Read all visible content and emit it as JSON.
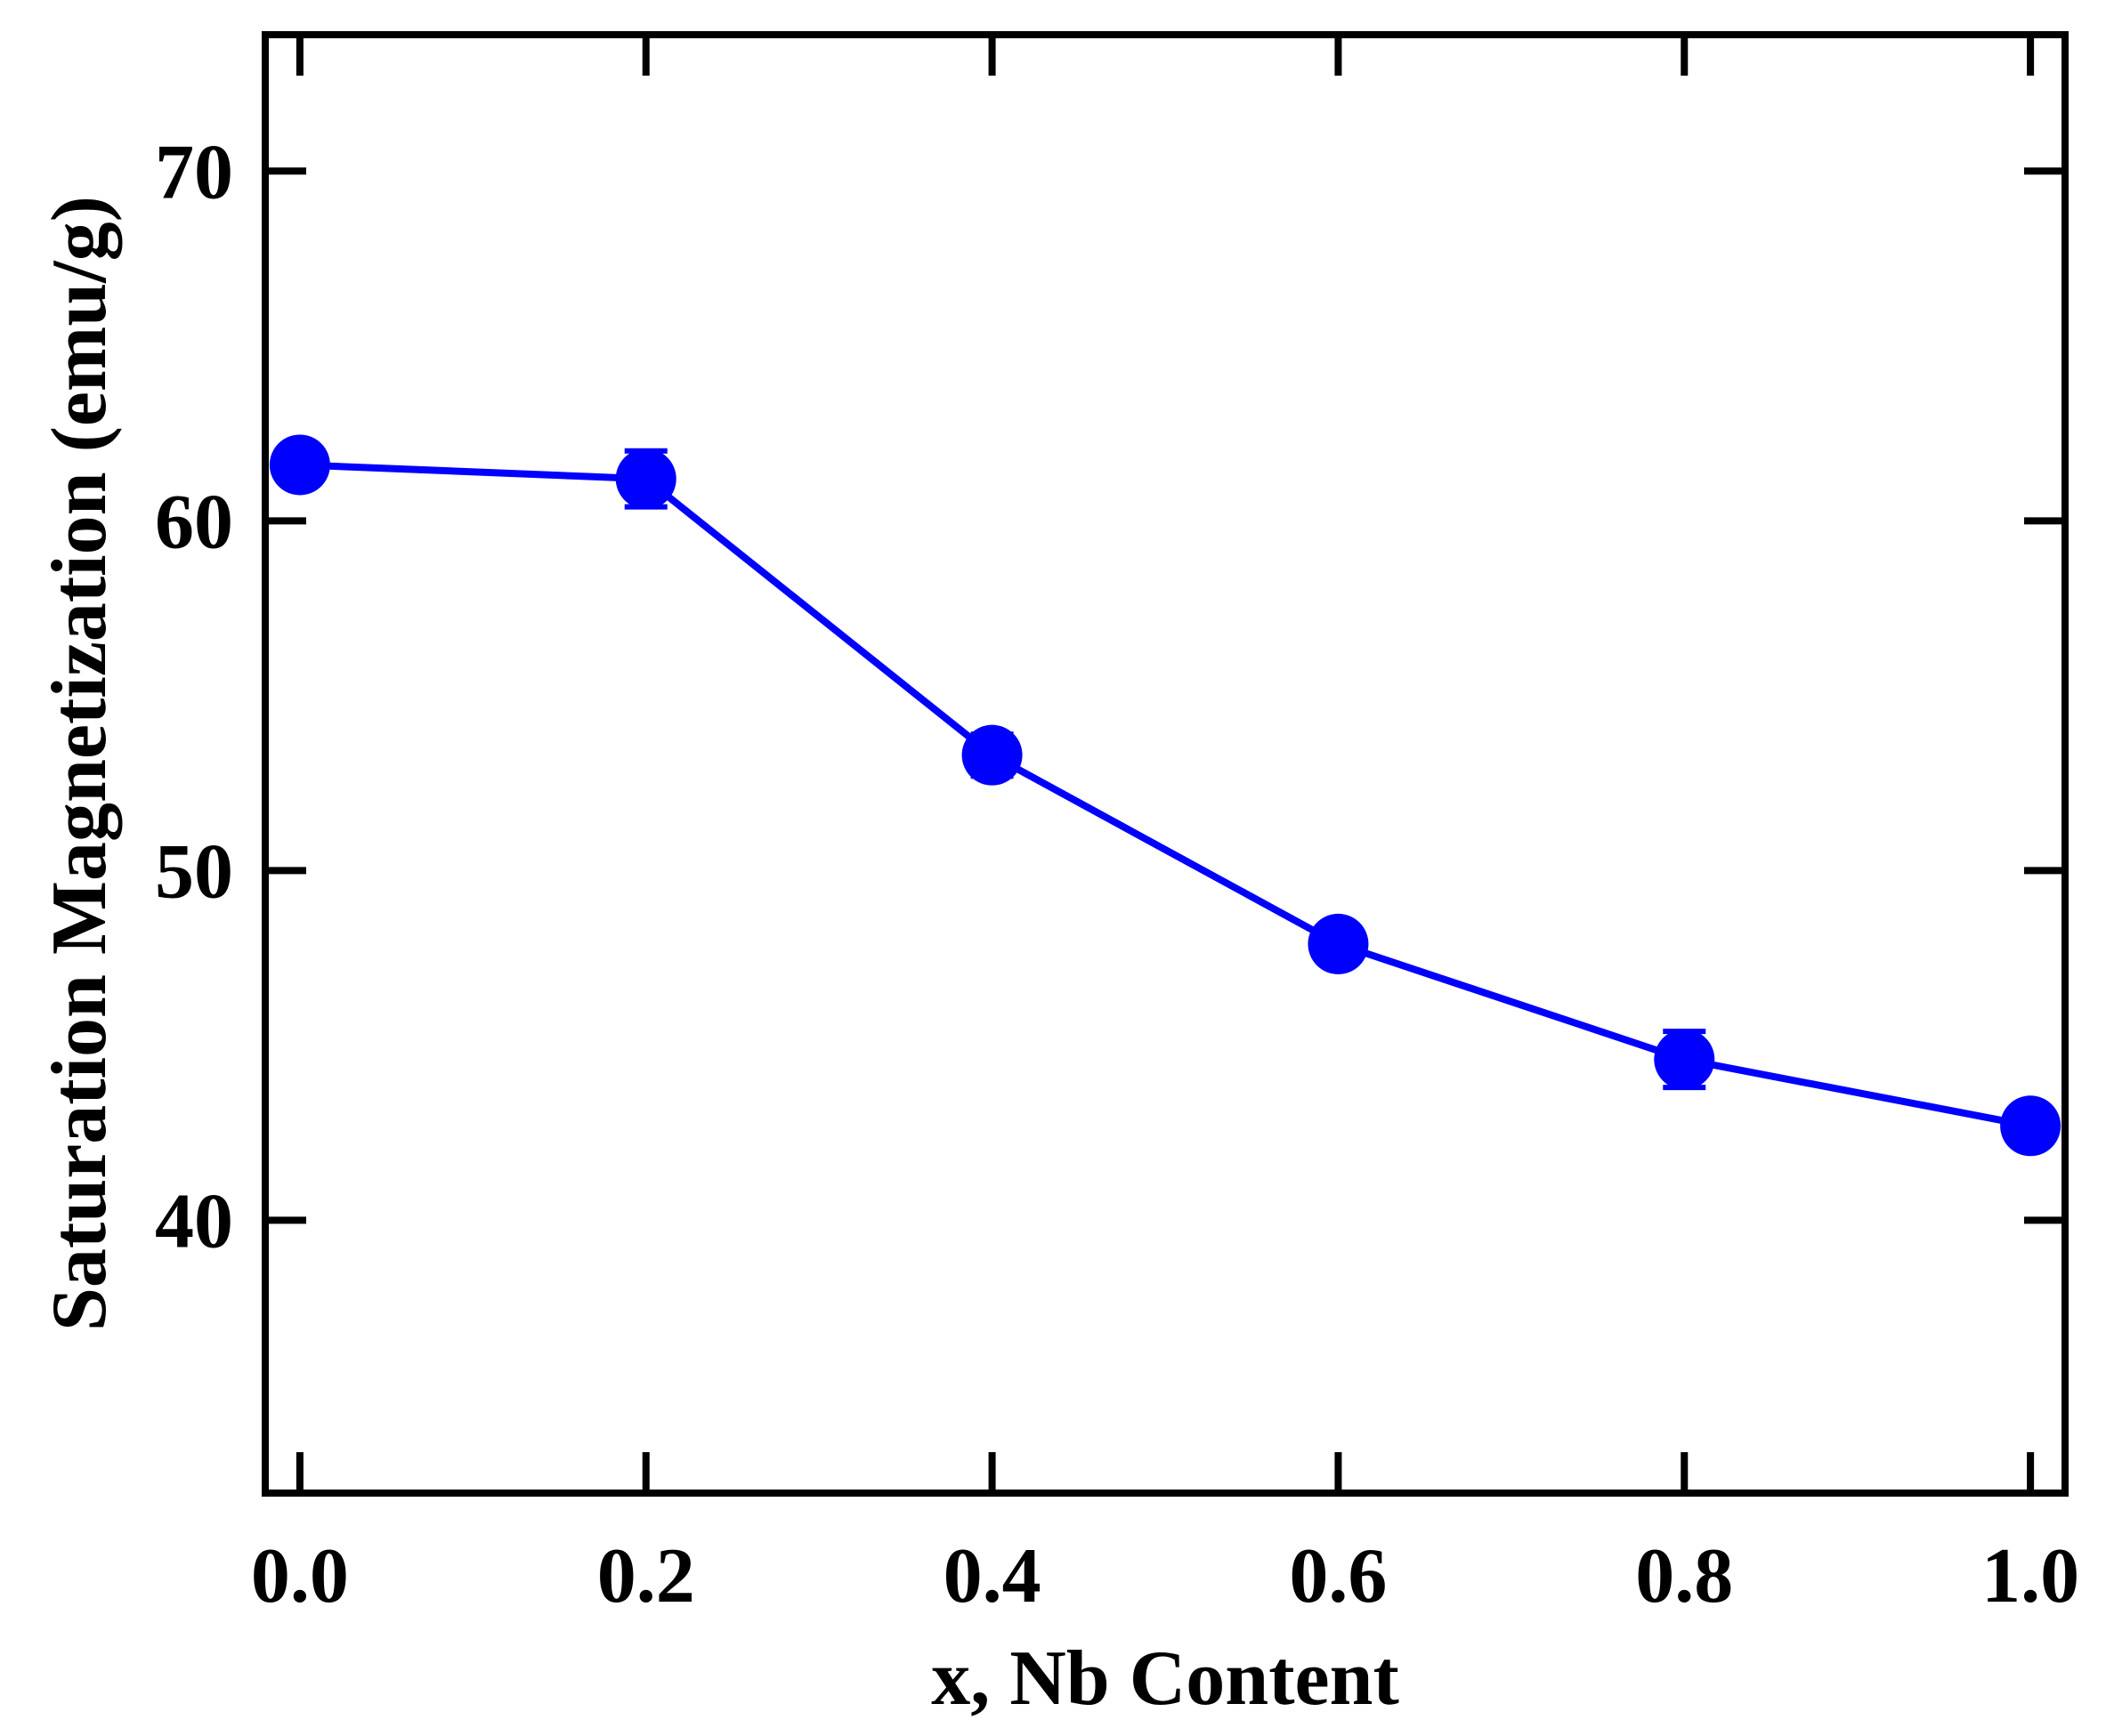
{
  "chart_data": {
    "type": "line",
    "title": "",
    "xlabel": "x, Nb Content",
    "ylabel": "Saturation Magnetization (emu/g)",
    "xlim": [
      -0.02,
      1.02
    ],
    "ylim": [
      32.2,
      73.9
    ],
    "x_ticks": [
      0.0,
      0.2,
      0.4,
      0.6,
      0.8,
      1.0
    ],
    "x_tick_labels": [
      "0.0",
      "0.2",
      "0.4",
      "0.6",
      "0.8",
      "1.0"
    ],
    "y_ticks": [
      40,
      50,
      60,
      70
    ],
    "y_tick_labels": [
      "40",
      "50",
      "60",
      "70"
    ],
    "grid": false,
    "legend": "none",
    "series": [
      {
        "color": "#0000ff",
        "marker": "circle",
        "x": [
          0.0,
          0.2,
          0.4,
          0.6,
          0.8,
          1.0
        ],
        "y": [
          61.6,
          61.2,
          53.3,
          47.9,
          44.6,
          42.7
        ],
        "yerr": [
          0.5,
          0.8,
          0.6,
          0.5,
          0.8,
          0.4
        ]
      }
    ]
  }
}
